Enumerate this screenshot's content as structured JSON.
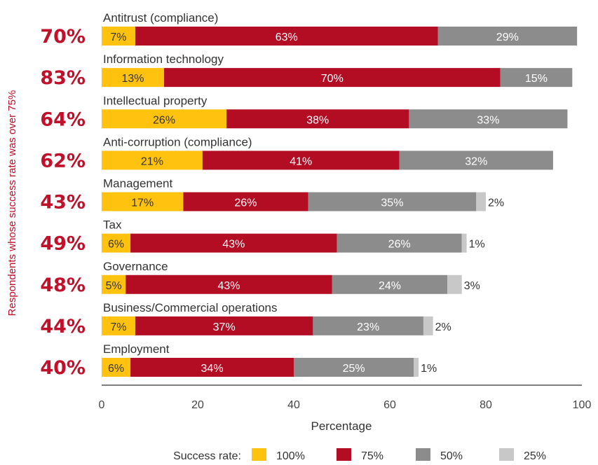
{
  "chart_data": {
    "type": "bar",
    "orientation": "horizontal",
    "stacked": true,
    "xlabel": "Percentage",
    "ylabel": "Respondents whose success rate was over 75%",
    "xlim": [
      0,
      100
    ],
    "x_ticks": [
      "0",
      "20",
      "40",
      "60",
      "80",
      "100"
    ],
    "grid": false,
    "legend": {
      "title": "Success rate:",
      "placement": "bottom",
      "entries": [
        "100%",
        "75%",
        "50%",
        "25%"
      ]
    },
    "categories": [
      "Antitrust (compliance)",
      "Information technology",
      "Intellectual property",
      "Anti-corruption (compliance)",
      "Management",
      "Tax",
      "Governance",
      "Business/Commercial operations",
      "Employment"
    ],
    "summary_labels": [
      "70%",
      "83%",
      "64%",
      "62%",
      "43%",
      "49%",
      "48%",
      "44%",
      "40%"
    ],
    "series": [
      {
        "name": "100%",
        "color": "#ffc20e",
        "values": [
          7,
          13,
          26,
          21,
          17,
          6,
          5,
          7,
          6
        ],
        "labels": [
          "7%",
          "13%",
          "26%",
          "21%",
          "17%",
          "6%",
          "5%",
          "7%",
          "6%"
        ]
      },
      {
        "name": "75%",
        "color": "#b30d24",
        "values": [
          63,
          70,
          38,
          41,
          26,
          43,
          43,
          37,
          34
        ],
        "labels": [
          "63%",
          "70%",
          "38%",
          "41%",
          "26%",
          "43%",
          "43%",
          "37%",
          "34%"
        ]
      },
      {
        "name": "50%",
        "color": "#8c8c8c",
        "values": [
          29,
          15,
          33,
          32,
          35,
          26,
          24,
          23,
          25
        ],
        "labels": [
          "29%",
          "15%",
          "33%",
          "32%",
          "35%",
          "26%",
          "24%",
          "23%",
          "25%"
        ]
      },
      {
        "name": "25%",
        "color": "#c8c8c8",
        "values": [
          0,
          0,
          0,
          0,
          2,
          1,
          3,
          2,
          1
        ],
        "labels": [
          "",
          "",
          "",
          "",
          "2%",
          "1%",
          "3%",
          "2%",
          "1%"
        ]
      }
    ]
  }
}
